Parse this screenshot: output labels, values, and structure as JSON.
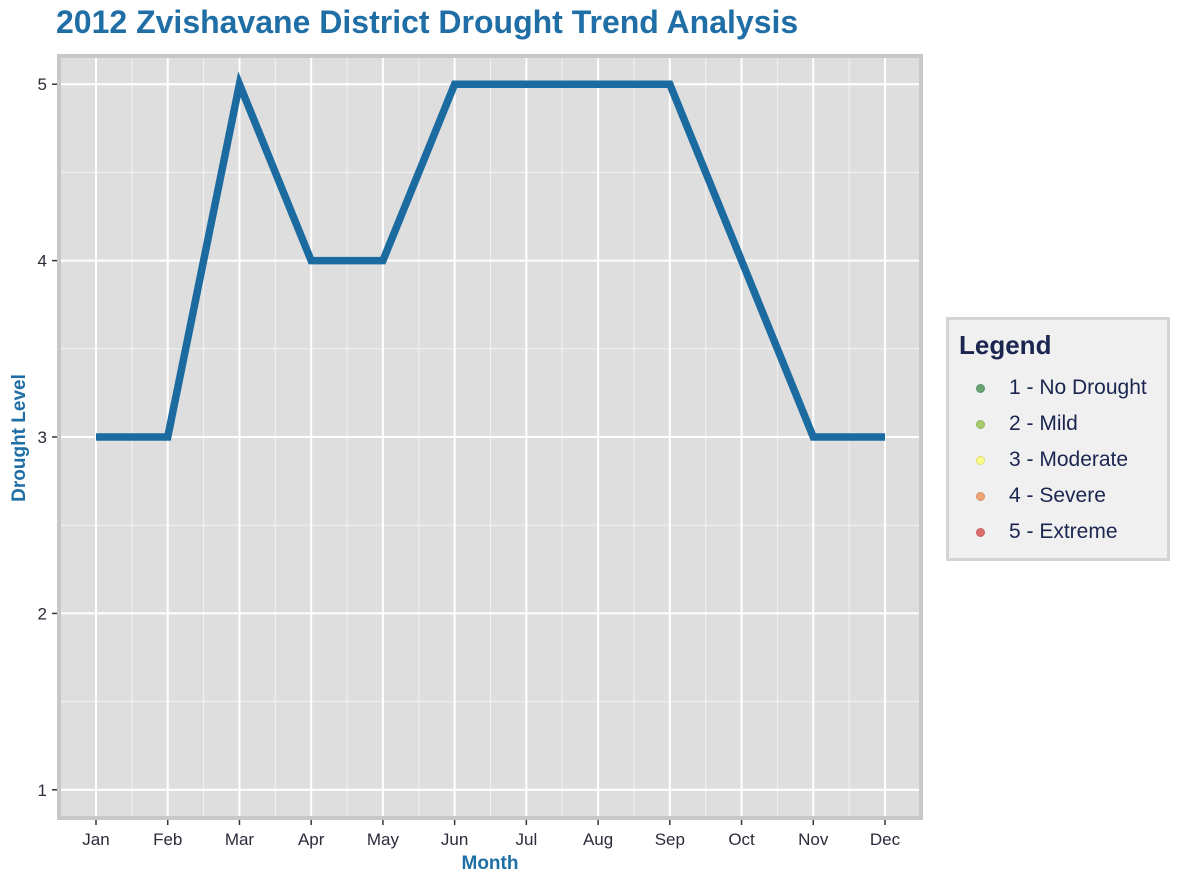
{
  "chart_data": {
    "type": "line",
    "title": "2012 Zvishavane District Drought Trend Analysis",
    "xlabel": "Month",
    "ylabel": "Drought Level",
    "categories": [
      "Jan",
      "Feb",
      "Mar",
      "Apr",
      "May",
      "Jun",
      "Jul",
      "Aug",
      "Sep",
      "Oct",
      "Nov",
      "Dec"
    ],
    "values": [
      3,
      3,
      5,
      4,
      4,
      5,
      5,
      5,
      5,
      4,
      3,
      3
    ],
    "yticks": [
      1,
      2,
      3,
      4,
      5
    ],
    "ylim": [
      0.84,
      5.16
    ],
    "grid": true,
    "line_color": "#1c6ba0",
    "panel_background": "#dedede",
    "legend": {
      "title": "Legend",
      "placement": "right",
      "items": [
        {
          "label": "1 - No Drought",
          "color": "#3b8a4a"
        },
        {
          "label": "2 - Mild",
          "color": "#8cbf3f"
        },
        {
          "label": "3 - Moderate",
          "color": "#ffff66"
        },
        {
          "label": "4 - Severe",
          "color": "#f08a4b"
        },
        {
          "label": "5 - Extreme",
          "color": "#d94040"
        }
      ]
    }
  }
}
